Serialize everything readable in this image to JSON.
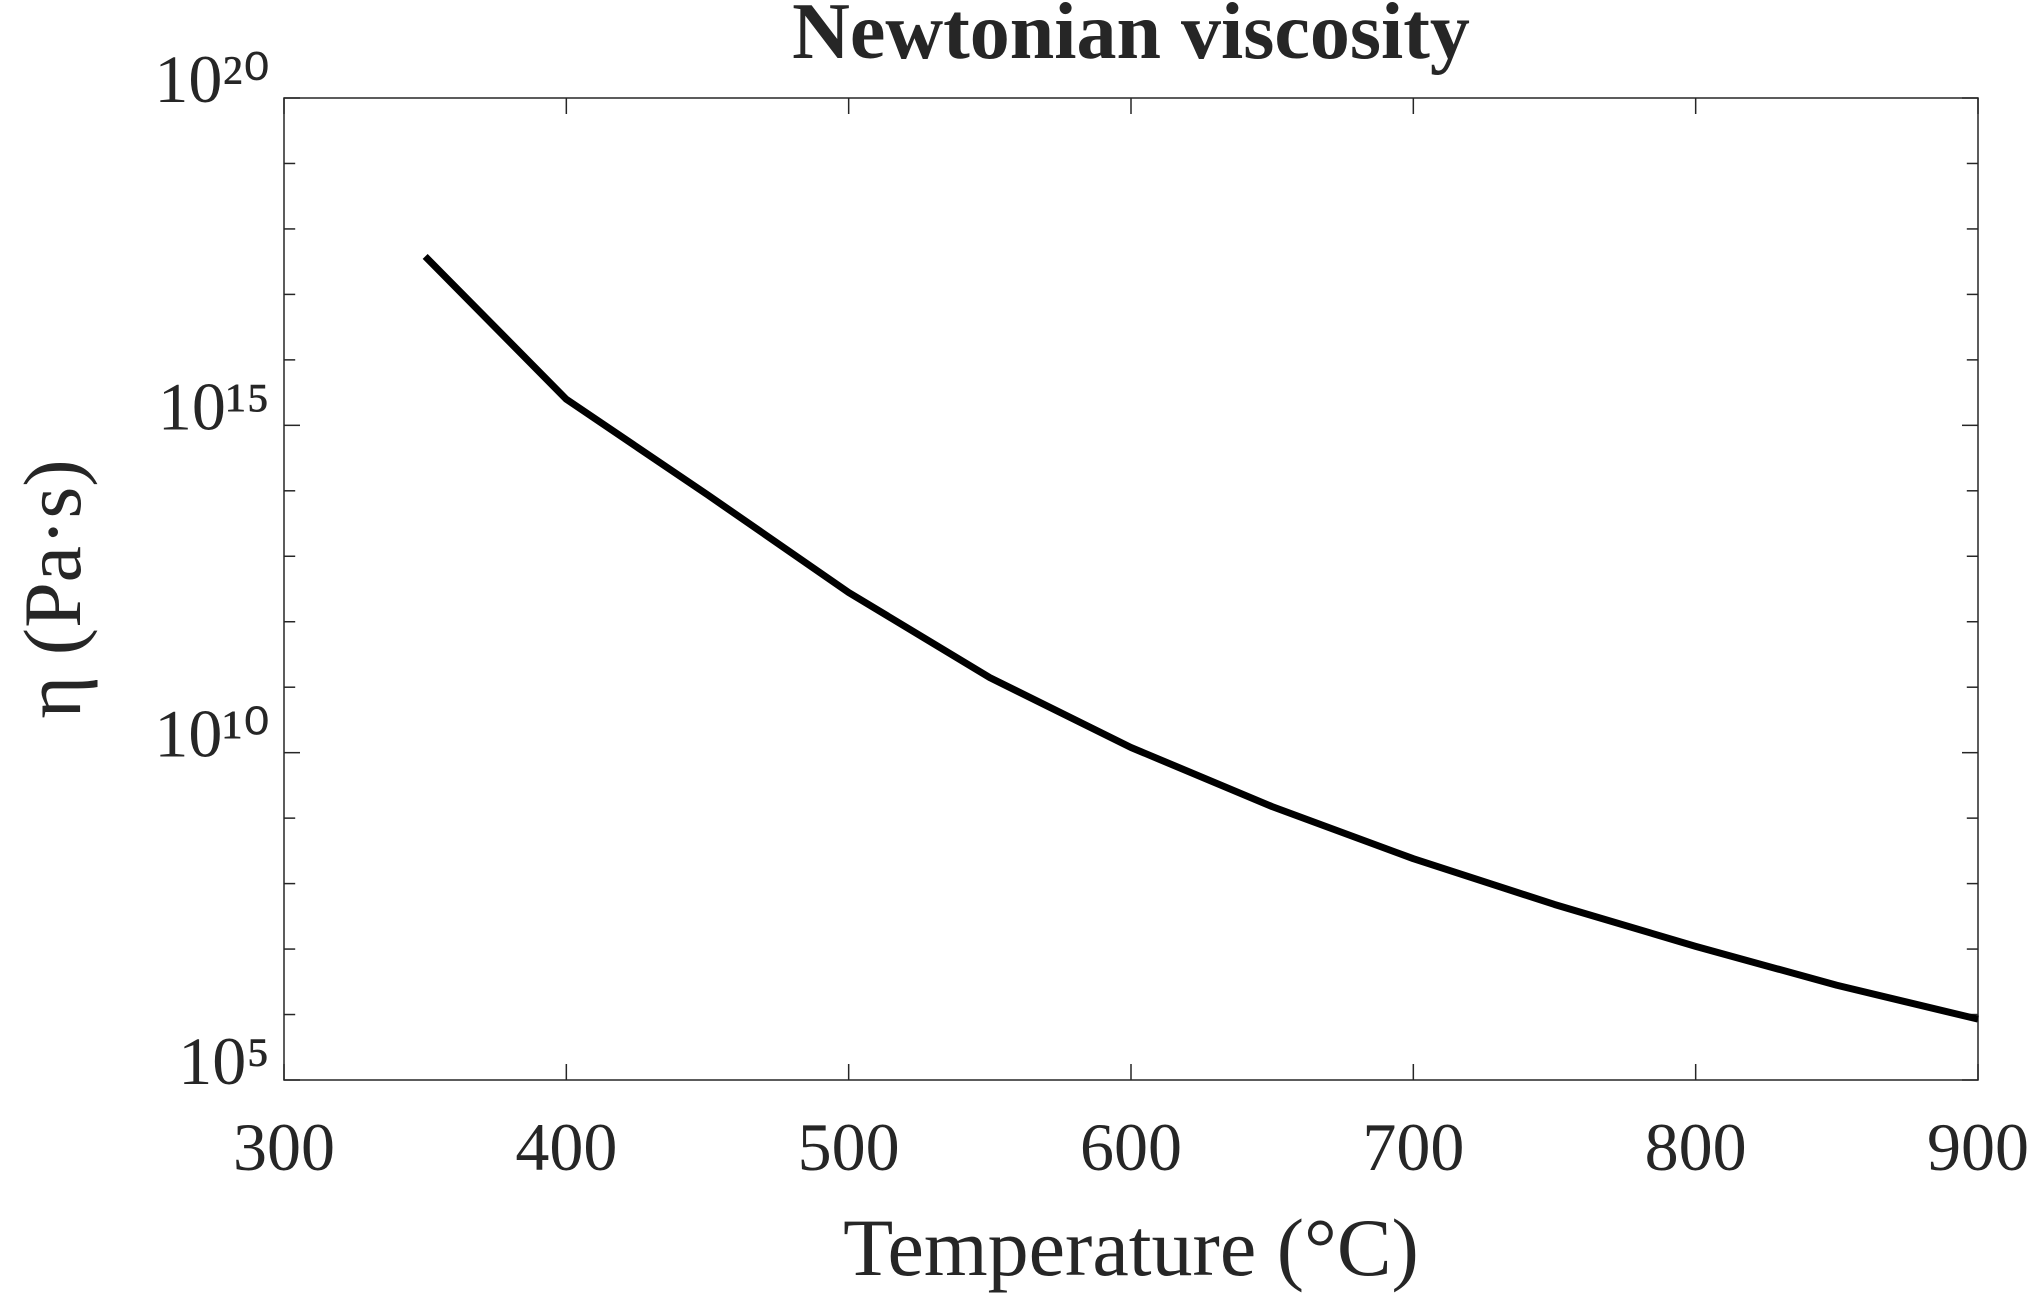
{
  "chart_data": {
    "type": "line",
    "title": "Newtonian viscosity",
    "xlabel": "Temperature (°C)",
    "ylabel": "η (Pa·s)",
    "x": [
      350,
      400,
      450,
      500,
      550,
      600,
      650,
      700,
      750,
      800,
      850,
      900
    ],
    "series": [
      {
        "name": "η",
        "color": "#000000",
        "values": [
          3.8e+17,
          2500000000000000.0,
          87000000000000.0,
          2800000000000.0,
          140000000000.0,
          12000000000.0,
          1500000000.0,
          240000000.0,
          48000000.0,
          11000000.0,
          2800000.0,
          850000.0
        ]
      }
    ],
    "xlim": [
      300,
      900
    ],
    "xticks": [
      300,
      400,
      500,
      600,
      700,
      800,
      900
    ],
    "ylim": [
      100000,
      1e+20
    ],
    "yscale": "log",
    "yticks": [
      {
        "value": 100000,
        "label": "10⁵"
      },
      {
        "value": 10000000000.0,
        "label": "10¹⁰"
      },
      {
        "value": 1000000000000000.0,
        "label": "10¹⁵"
      },
      {
        "value": 1e+20,
        "label": "10²⁰"
      }
    ],
    "yminorticks": [
      1000000.0,
      10000000.0,
      100000000.0,
      1000000000.0,
      100000000000.0,
      1000000000000.0,
      10000000000000.0,
      100000000000000.0,
      1e+16,
      1e+17,
      1e+18,
      1e+19
    ],
    "grid": false
  }
}
